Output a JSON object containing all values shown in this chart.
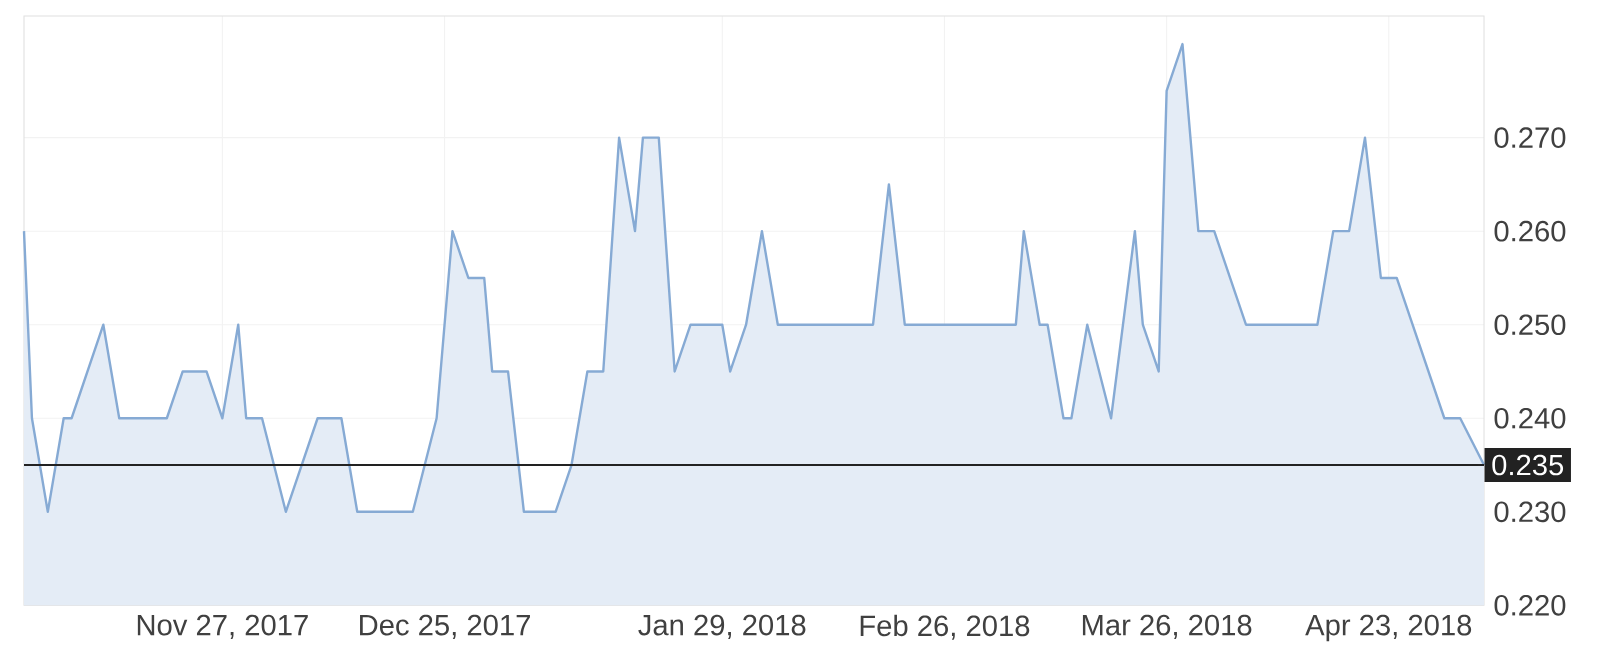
{
  "chart_data": {
    "type": "area",
    "x": [
      "2017-11-02",
      "2017-11-03",
      "2017-11-05",
      "2017-11-07",
      "2017-11-08",
      "2017-11-12",
      "2017-11-14",
      "2017-11-20",
      "2017-11-22",
      "2017-11-25",
      "2017-11-27",
      "2017-11-29",
      "2017-11-30",
      "2017-12-02",
      "2017-12-05",
      "2017-12-09",
      "2017-12-12",
      "2017-12-14",
      "2017-12-21",
      "2017-12-24",
      "2017-12-26",
      "2017-12-28",
      "2017-12-30",
      "2017-12-31",
      "2018-01-02",
      "2018-01-04",
      "2018-01-08",
      "2018-01-10",
      "2018-01-12",
      "2018-01-14",
      "2018-01-16",
      "2018-01-18",
      "2018-01-19",
      "2018-01-21",
      "2018-01-23",
      "2018-01-25",
      "2018-01-29",
      "2018-01-30",
      "2018-02-01",
      "2018-02-03",
      "2018-02-05",
      "2018-02-17",
      "2018-02-19",
      "2018-02-21",
      "2018-03-07",
      "2018-03-08",
      "2018-03-10",
      "2018-03-11",
      "2018-03-13",
      "2018-03-14",
      "2018-03-16",
      "2018-03-19",
      "2018-03-22",
      "2018-03-23",
      "2018-03-25",
      "2018-03-26",
      "2018-03-28",
      "2018-03-30",
      "2018-04-01",
      "2018-04-05",
      "2018-04-14",
      "2018-04-16",
      "2018-04-18",
      "2018-04-20",
      "2018-04-22",
      "2018-04-24",
      "2018-04-30",
      "2018-05-02",
      "2018-05-05"
    ],
    "values": [
      0.26,
      0.24,
      0.23,
      0.24,
      0.24,
      0.25,
      0.24,
      0.24,
      0.245,
      0.245,
      0.24,
      0.25,
      0.24,
      0.24,
      0.23,
      0.24,
      0.24,
      0.23,
      0.23,
      0.24,
      0.26,
      0.255,
      0.255,
      0.245,
      0.245,
      0.23,
      0.23,
      0.235,
      0.245,
      0.245,
      0.27,
      0.26,
      0.27,
      0.27,
      0.245,
      0.25,
      0.25,
      0.245,
      0.25,
      0.26,
      0.25,
      0.25,
      0.265,
      0.25,
      0.25,
      0.26,
      0.25,
      0.25,
      0.24,
      0.24,
      0.25,
      0.24,
      0.26,
      0.25,
      0.245,
      0.275,
      0.28,
      0.26,
      0.26,
      0.25,
      0.25,
      0.26,
      0.26,
      0.27,
      0.255,
      0.255,
      0.24,
      0.24,
      0.235
    ],
    "color": "#86aad4",
    "xlim": [
      "2017-11-02",
      "2018-05-05"
    ],
    "xticks": [
      {
        "value": "2017-11-27",
        "label": "Nov 27, 2017"
      },
      {
        "value": "2017-12-25",
        "label": "Dec 25, 2017"
      },
      {
        "value": "2018-01-29",
        "label": "Jan 29, 2018"
      },
      {
        "value": "2018-02-26",
        "label": "Feb 26, 2018"
      },
      {
        "value": "2018-03-26",
        "label": "Mar 26, 2018"
      },
      {
        "value": "2018-04-23",
        "label": "Apr 23, 2018"
      }
    ],
    "ylim": [
      0.22,
      0.283
    ],
    "yticks": [
      {
        "value": 0.22,
        "label": "0.220"
      },
      {
        "value": 0.23,
        "label": "0.230"
      },
      {
        "value": 0.24,
        "label": "0.240"
      },
      {
        "value": 0.25,
        "label": "0.250"
      },
      {
        "value": 0.26,
        "label": "0.260"
      },
      {
        "value": 0.27,
        "label": "0.270"
      }
    ],
    "ref_lines": [
      {
        "axis": "y",
        "value": 0.235,
        "label": "0.235",
        "color": "#222222"
      }
    ],
    "grid": true
  }
}
